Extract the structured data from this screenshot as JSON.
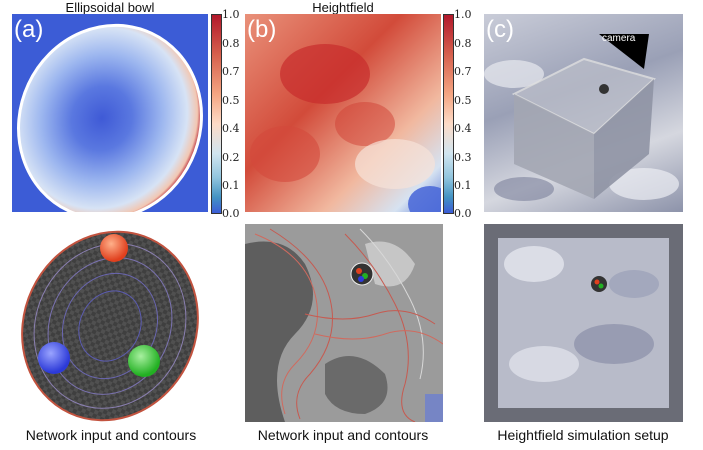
{
  "panels": [
    {
      "label": "(a)",
      "title": "Ellipsoidal bowl",
      "caption": "Network input and contours"
    },
    {
      "label": "(b)",
      "title": "Heightfield",
      "caption": "Network input and contours"
    },
    {
      "label": "(c)",
      "title": "",
      "caption": "Heightfield simulation setup",
      "camera_label": "camera"
    }
  ],
  "colorbar_ticks_a": [
    "1.0",
    "0.8",
    "0.7",
    "0.5",
    "0.4",
    "0.2",
    "0.1",
    "0.0"
  ],
  "colorbar_ticks_b": [
    "1.0",
    "0.8",
    "0.7",
    "0.5",
    "0.4",
    "0.3",
    "0.1",
    "0.0"
  ],
  "colors": {
    "red": "#b2182b",
    "blue": "#3c5cd6",
    "ball_red": "#e0401e",
    "ball_blue": "#2c3ad8",
    "ball_green": "#22b022"
  }
}
